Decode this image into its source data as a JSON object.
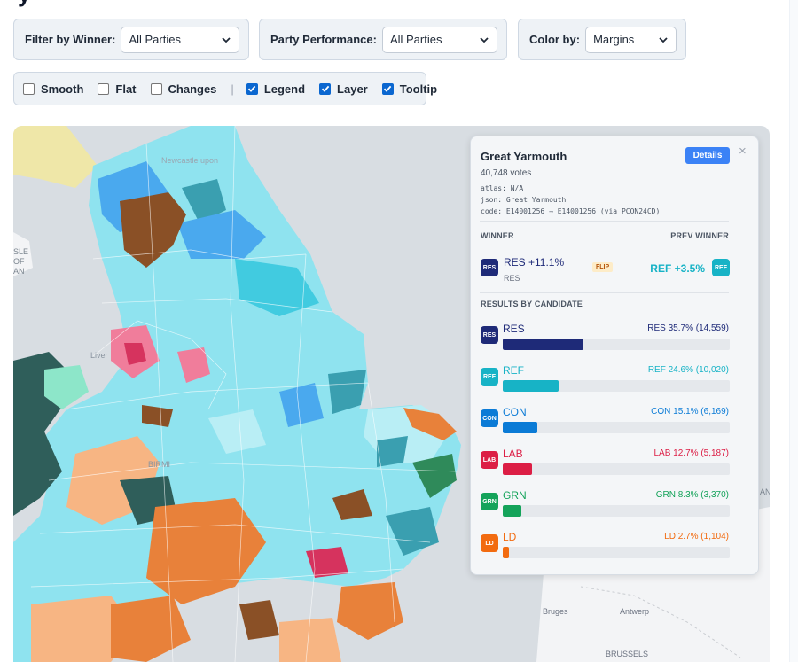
{
  "header": {
    "title_fragment": "y"
  },
  "controls": {
    "winner_filter": {
      "label": "Filter by Winner:",
      "value": "All Parties"
    },
    "performance": {
      "label": "Party Performance:",
      "value": "All Parties"
    },
    "color_by": {
      "label": "Color by:",
      "value": "Margins"
    }
  },
  "options": [
    {
      "label": "Smooth",
      "checked": false
    },
    {
      "label": "Flat",
      "checked": false
    },
    {
      "label": "Changes",
      "checked": false
    },
    {
      "label": "Legend",
      "checked": true
    },
    {
      "label": "Layer",
      "checked": true
    },
    {
      "label": "Tooltip",
      "checked": true
    }
  ],
  "map": {
    "labels": {
      "newcastle": "Newcastle upon",
      "liverpool": "Liver",
      "birmingham": "BIRMI",
      "bruges": "Bruges",
      "antwerp": "Antwerp",
      "brussels": "BRUSSELS",
      "isle_of_man": [
        "SLE",
        "OF",
        "AN"
      ],
      "edge_an": "AN"
    },
    "colors": {
      "sea": "#d8dde2",
      "scotland": "#efe7a8",
      "continent": "#f3f4f6",
      "ref_light": "#8fe3ef",
      "ref_mid": "#41cbe0",
      "ref_pale": "#b9eef5",
      "blue": "#4aa9ee",
      "dark_teal": "#2f5e5a",
      "teal": "#3a9fb0",
      "brown": "#8a5026",
      "orange": "#e8813a",
      "peach": "#f7b583",
      "pink": "#f07d9b",
      "crimson": "#d6335e",
      "green": "#2f8a5a",
      "mint": "#8de6c9"
    }
  },
  "tooltip": {
    "constituency": "Great Yarmouth",
    "votes": "40,748 votes",
    "atlas": "atlas: N/A",
    "json": "json: Great Yarmouth",
    "code": "code: E14001256 → E14001256 (via PCON24CD)",
    "details_label": "Details",
    "close": "×",
    "winner_heading": "WINNER",
    "prev_winner_heading": "PREV WINNER",
    "winner": {
      "badge": "RES",
      "text": "RES +11.1%",
      "sub": "RES",
      "color": "#1e2a78"
    },
    "flip": "FLIP",
    "prev_winner": {
      "badge": "REF",
      "text": "REF +3.5%",
      "color": "#17b3c6"
    },
    "results_heading": "RESULTS BY CANDIDATE",
    "candidates": [
      {
        "badge": "RES",
        "code": "RES",
        "result": "RES 35.7% (14,559)",
        "share": 35.7,
        "color": "#1e2a78"
      },
      {
        "badge": "REF",
        "code": "REF",
        "result": "REF 24.6% (10,020)",
        "share": 24.6,
        "color": "#17b3c6"
      },
      {
        "badge": "CON",
        "code": "CON",
        "result": "CON 15.1% (6,169)",
        "share": 15.1,
        "color": "#0b7bd6"
      },
      {
        "badge": "LAB",
        "code": "LAB",
        "result": "LAB 12.7% (5,187)",
        "share": 12.7,
        "color": "#dc1e45"
      },
      {
        "badge": "GRN",
        "code": "GRN",
        "result": "GRN 8.3% (3,370)",
        "share": 8.3,
        "color": "#14a35a"
      },
      {
        "badge": "LD",
        "code": "LD",
        "result": "LD 2.7% (1,104)",
        "share": 2.7,
        "color": "#f26b10"
      }
    ]
  }
}
